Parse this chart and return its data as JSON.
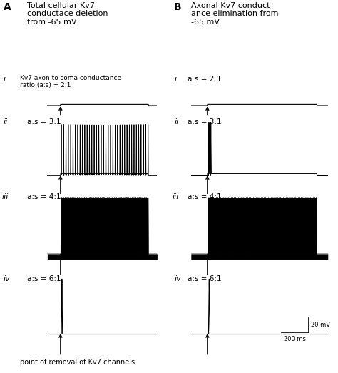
{
  "fig_width": 4.74,
  "fig_height": 5.23,
  "dpi": 100,
  "background": "#ffffff",
  "panel_A_title": "Total cellular Kv7\nconductace deletion\nfrom -65 mV",
  "panel_B_title": "Axonal Kv7 conduct-\nance elimination from\n-65 mV",
  "ratio_label_Ai": "Kv7 axon to soma conductance\nratio (a:s) = 2:1",
  "ratio_labels_A": [
    "a:s = 3:1",
    "a:s = 4:1",
    "a:s = 6:1"
  ],
  "ratio_labels_B": [
    "a:s = 2:1",
    "a:s = 3:1",
    "a:s = 4:1",
    "a:s = 6:1"
  ],
  "scalebar_label_y": "20 mV",
  "scalebar_label_x": "200 ms",
  "bottom_label": "point of removal of Kv7 channels",
  "trace_color": "#000000"
}
